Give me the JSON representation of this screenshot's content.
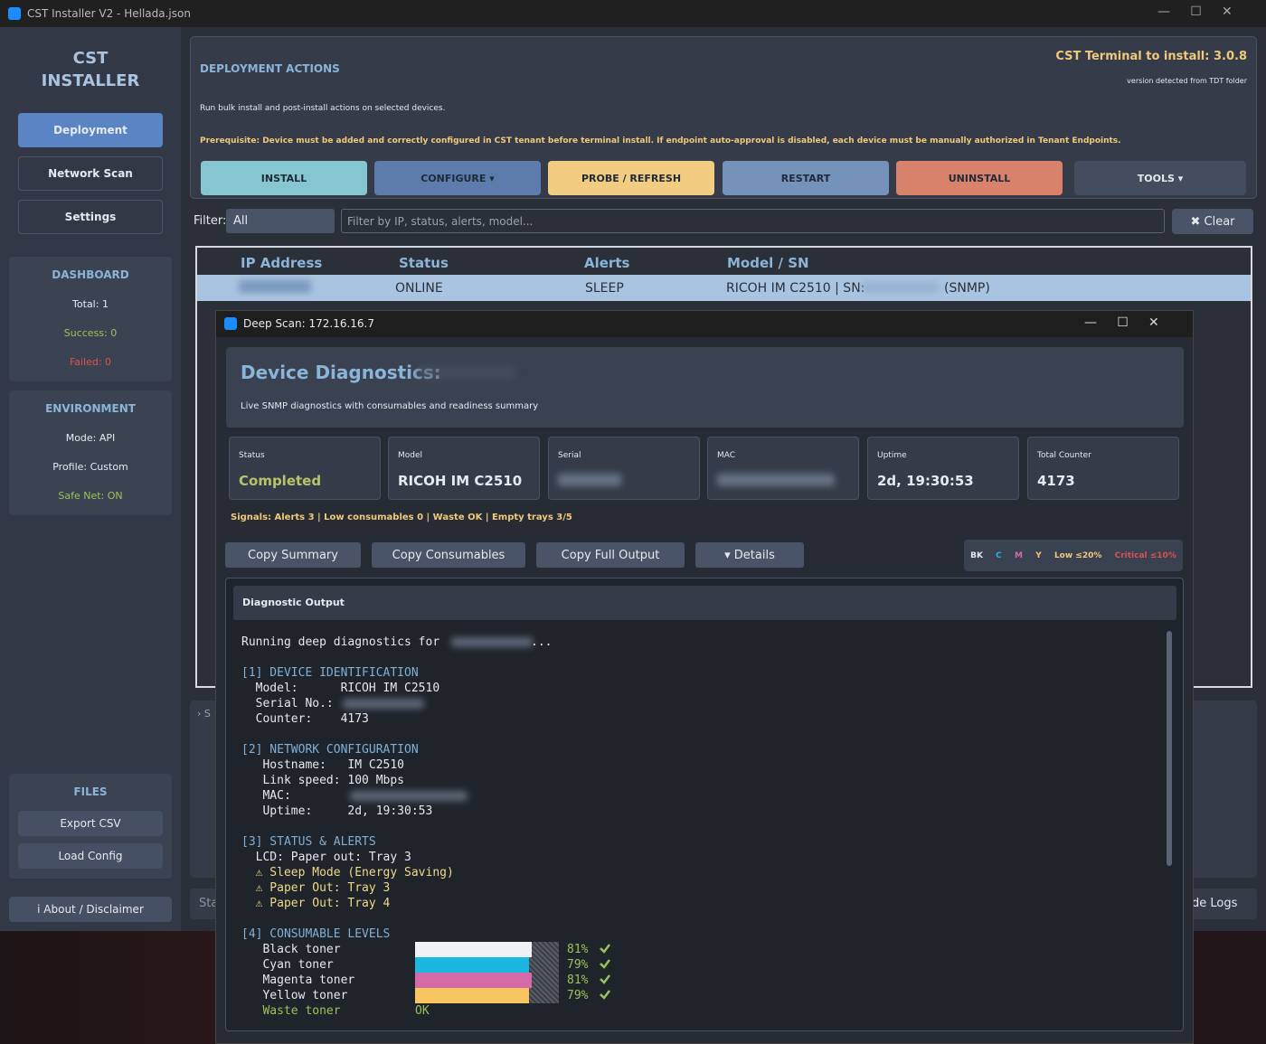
{
  "window": {
    "title": "CST Installer V2 - Hellada.json"
  },
  "sidebar": {
    "title_line1": "CST",
    "title_line2": "INSTALLER",
    "nav": [
      "Deployment",
      "Network Scan",
      "Settings"
    ],
    "dashboard": {
      "title": "DASHBOARD",
      "total": "Total: 1",
      "success": "Success: 0",
      "failed": "Failed: 0"
    },
    "environment": {
      "title": "ENVIRONMENT",
      "mode": "Mode: API",
      "profile": "Profile: Custom",
      "safe_net": "Safe Net: ON"
    },
    "files": {
      "title": "FILES",
      "export": "Export CSV",
      "load": "Load Config"
    },
    "about": "i About / Disclaimer"
  },
  "actions": {
    "title": "DEPLOYMENT ACTIONS",
    "terminal": "CST Terminal to install: 3.0.8",
    "version_note": "version detected from TDT folder",
    "description": "Run bulk install and post-install actions on selected devices.",
    "prerequisite": "Prerequisite: Device must be added and correctly configured in CST tenant before terminal install. If endpoint auto-approval is disabled, each device must be manually authorized in Tenant Endpoints.",
    "buttons": [
      "INSTALL",
      "CONFIGURE ▾",
      "PROBE / REFRESH",
      "RESTART",
      "UNINSTALL",
      "TOOLS ▾"
    ]
  },
  "filter": {
    "label": "Filter:",
    "selected": "All",
    "placeholder": "Filter by IP, status, alerts, model...",
    "clear": "✖ Clear"
  },
  "table": {
    "headers": [
      "IP Address",
      "Status",
      "Alerts",
      "Model / SN"
    ],
    "rows": [
      [
        "ONLINE",
        "SLEEP",
        "RICOH IM C2510 | SN:",
        "(SNMP)"
      ]
    ]
  },
  "hidden": {
    "log_toggle": "› S",
    "status": "Sta",
    "logs": "de Logs"
  },
  "dialog": {
    "title": "Deep Scan: 172.16.16.7",
    "heading": "Device Diagnostics:",
    "subtitle": "Live SNMP diagnostics with consumables and readiness summary",
    "cards": [
      {
        "label": "Status",
        "value": "Completed"
      },
      {
        "label": "Model",
        "value": "RICOH IM C2510"
      },
      {
        "label": "Serial"
      },
      {
        "label": "MAC"
      },
      {
        "label": "Uptime",
        "value": "2d, 19:30:53"
      },
      {
        "label": "Total Counter",
        "value": "4173"
      }
    ],
    "signals": "Signals: Alerts 3 | Low consumables 0 | Waste OK | Empty trays 3/5",
    "buttons": [
      "Copy Summary",
      "Copy Consumables",
      "Copy Full Output",
      "▾ Details"
    ],
    "legend": [
      "BK",
      "C",
      "M",
      "Y",
      "Low ≤20%",
      "Critical ≤10%"
    ],
    "output_title": "Diagnostic Output",
    "output": {
      "intro": "Running deep diagnostics for",
      "ellipsis": "...",
      "s1": "[1] DEVICE IDENTIFICATION",
      "model": "  Model:      RICOH IM C2510",
      "serial": "  Serial No.:",
      "counter": "  Counter:    4173",
      "s2": "[2] NETWORK CONFIGURATION",
      "hostname": "   Hostname:   IM C2510",
      "link": "   Link speed: 100 Mbps",
      "mac": "   MAC:",
      "uptime": "   Uptime:     2d, 19:30:53",
      "s3": "[3] STATUS & ALERTS",
      "lcd": "  LCD: Paper out: Tray 3",
      "w1": "  ⚠ Sleep Mode (Energy Saving)",
      "w2": "  ⚠ Paper Out: Tray 3",
      "w3": "  ⚠ Paper Out: Tray 4",
      "s4": "[4] CONSUMABLE LEVELS",
      "consumables": [
        {
          "name": "   Black toner",
          "value": 81,
          "value_label": "81%",
          "color": "#eef2f5"
        },
        {
          "name": "   Cyan toner",
          "value": 79,
          "value_label": "79%",
          "color": "#1ab8e0"
        },
        {
          "name": "   Magenta toner",
          "value": 81,
          "value_label": "81%",
          "color": "#d66aa8"
        },
        {
          "name": "   Yellow toner",
          "value": 79,
          "value_label": "79%",
          "color": "#f7c660"
        }
      ],
      "waste_name": "   Waste toner",
      "waste_status": "OK"
    }
  }
}
